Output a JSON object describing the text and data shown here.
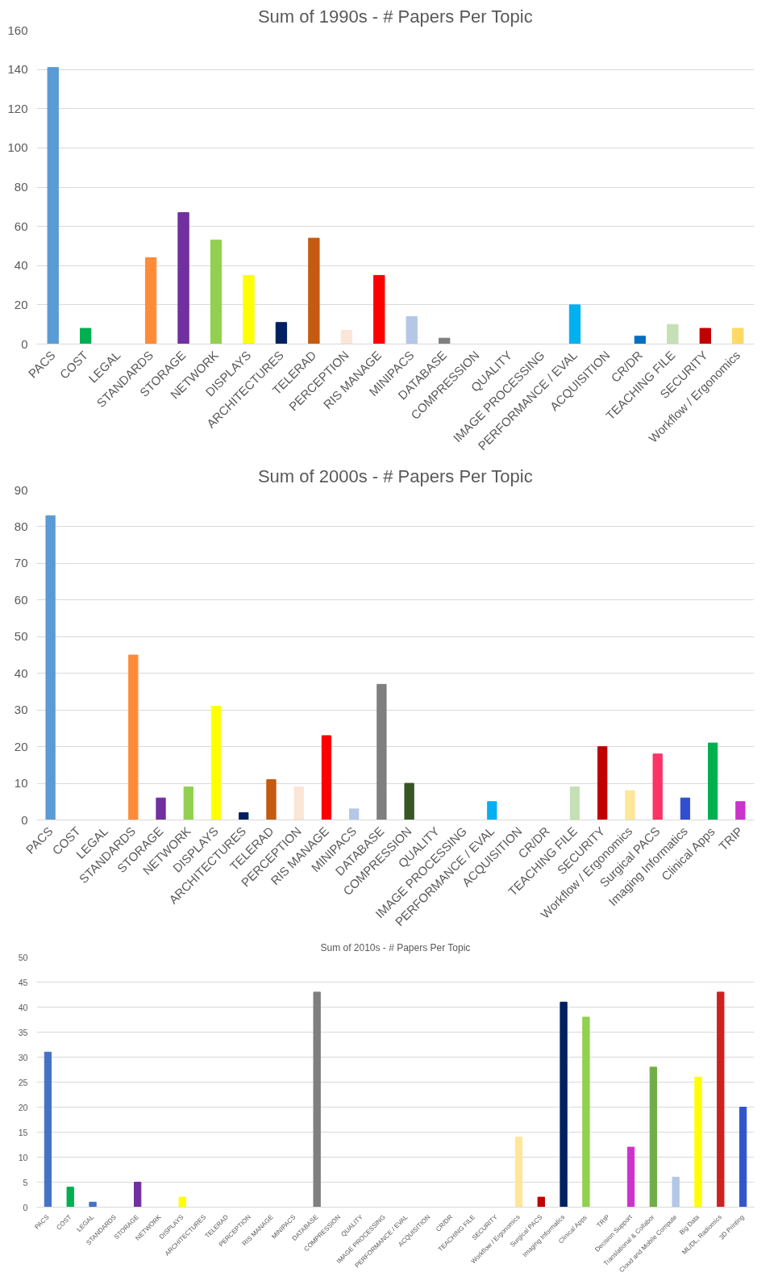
{
  "chart_data": [
    {
      "type": "bar",
      "title": "Sum of 1990s - # Papers Per Topic",
      "categories": [
        "PACS",
        "COST",
        "LEGAL",
        "STANDARDS",
        "STORAGE",
        "NETWORK",
        "DISPLAYS",
        "ARCHITECTURES",
        "TELERAD",
        "PERCEPTION",
        "RIS MANAGE",
        "MINIPACS",
        "DATABASE",
        "COMPRESSION",
        "QUALITY",
        "IMAGE PROCESSING",
        "PERFORMANCE / EVAL",
        "ACQUISITION",
        "CR/DR",
        "TEACHING FILE",
        "SECURITY",
        "Workflow / Ergonomics"
      ],
      "values": [
        141,
        8,
        0,
        44,
        67,
        53,
        35,
        11,
        54,
        7,
        35,
        14,
        3,
        0,
        0,
        0,
        20,
        0,
        4,
        10,
        8,
        8
      ],
      "colors": [
        "#5b9bd5",
        "#00b050",
        "#4472c4",
        "#ff8b38",
        "#7030a0",
        "#92d050",
        "#ffff00",
        "#002060",
        "#c55a11",
        "#fbe5d6",
        "#ff0000",
        "#b4c7e7",
        "#7f7f7f",
        "#375623",
        "#a5a5a5",
        "#ffc000",
        "#00b0f0",
        "#4472c4",
        "#0070c0",
        "#c5e0b4",
        "#c00000",
        "#ffd966"
      ],
      "ylim": [
        0,
        160
      ],
      "yticks": [
        0,
        20,
        40,
        60,
        80,
        100,
        120,
        140,
        160
      ],
      "grid": "y"
    },
    {
      "type": "bar",
      "title": "Sum of 2000s - # Papers Per Topic",
      "categories": [
        "PACS",
        "COST",
        "LEGAL",
        "STANDARDS",
        "STORAGE",
        "NETWORK",
        "DISPLAYS",
        "ARCHITECTURES",
        "TELERAD",
        "PERCEPTION",
        "RIS MANAGE",
        "MINIPACS",
        "DATABASE",
        "COMPRESSION",
        "QUALITY",
        "IMAGE PROCESSING",
        "PERFORMANCE / EVAL",
        "ACQUISITION",
        "CR/DR",
        "TEACHING FILE",
        "SECURITY",
        "Workflow / Ergonomics",
        "Surgical PACS",
        "Imaging Informatics",
        "Clinical Apps",
        "TRIP"
      ],
      "values": [
        83,
        0,
        0,
        45,
        6,
        9,
        31,
        2,
        11,
        9,
        23,
        3,
        37,
        10,
        0,
        0,
        5,
        0,
        0,
        9,
        20,
        8,
        18,
        6,
        21,
        5
      ],
      "colors": [
        "#5b9bd5",
        "#00b050",
        "#4472c4",
        "#ff8b38",
        "#7030a0",
        "#92d050",
        "#ffff00",
        "#002060",
        "#c55a11",
        "#fbe5d6",
        "#ff0000",
        "#b4c7e7",
        "#7f7f7f",
        "#375623",
        "#a5a5a5",
        "#ffc000",
        "#00b0f0",
        "#4472c4",
        "#0070c0",
        "#c5e0b4",
        "#c00000",
        "#ffe699",
        "#ff3366",
        "#2f4fcf",
        "#00b050",
        "#cc33cc"
      ],
      "ylim": [
        0,
        90
      ],
      "yticks": [
        0,
        10,
        20,
        30,
        40,
        50,
        60,
        70,
        80,
        90
      ],
      "grid": "y"
    },
    {
      "type": "bar",
      "title": "Sum of 2010s - # Papers Per Topic",
      "categories": [
        "PACS",
        "COST",
        "LEGAL",
        "STANDARDS",
        "STORAGE",
        "NETWORK",
        "DISPLAYS",
        "ARCHITECTURES",
        "TELERAD",
        "PERCEPTION",
        "RIS MANAGE",
        "MINIPACS",
        "DATABASE",
        "COMPRESSION",
        "QUALITY",
        "IMAGE PROCESSING",
        "PERFORMANCE / EVAL",
        "ACQUISITION",
        "CR/DR",
        "TEACHING FILE",
        "SECURITY",
        "Workflow / Ergonomics",
        "Surgical PACS",
        "Imaging Informatics",
        "Clinical Apps",
        "TRIP",
        "Decision Support",
        "Translational & Collabor",
        "Cloud and Mobile Compute",
        "Big Data",
        "ML/DL, Radiomics",
        "3D Printing"
      ],
      "values": [
        31,
        4,
        1,
        0,
        5,
        0,
        2,
        0,
        0,
        0,
        0,
        0,
        43,
        0,
        0,
        0,
        0,
        0,
        0,
        0,
        0,
        14,
        2,
        41,
        38,
        0,
        12,
        28,
        6,
        26,
        43,
        20
      ],
      "colors": [
        "#4472c4",
        "#00b050",
        "#4472c4",
        "#ff8b38",
        "#7030a0",
        "#92d050",
        "#ffff00",
        "#002060",
        "#c55a11",
        "#fbe5d6",
        "#ff0000",
        "#b4c7e7",
        "#7f7f7f",
        "#375623",
        "#a5a5a5",
        "#ffc000",
        "#00b0f0",
        "#4472c4",
        "#0070c0",
        "#c5e0b4",
        "#c00000",
        "#ffe699",
        "#c00000",
        "#002060",
        "#92d050",
        "#cc33cc",
        "#cc33cc",
        "#70ad47",
        "#b4c7e7",
        "#ffff00",
        "#d02020",
        "#3355cc"
      ],
      "ylim": [
        0,
        50
      ],
      "yticks": [
        0,
        5,
        10,
        15,
        20,
        25,
        30,
        35,
        40,
        45,
        50
      ],
      "grid": "y"
    }
  ]
}
